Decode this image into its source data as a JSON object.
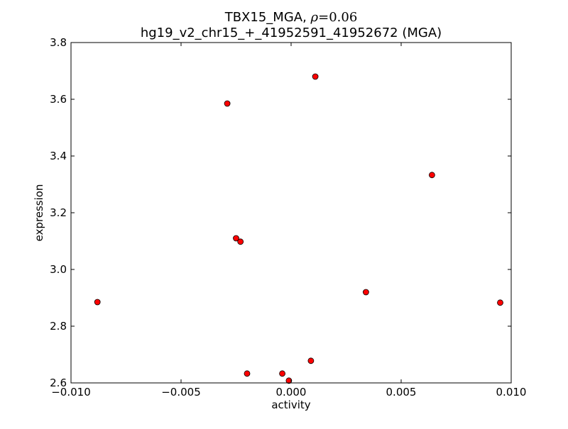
{
  "chart_data": {
    "type": "scatter",
    "title_line1_prefix": "TBX15_MGA,",
    "title_rho_symbol": "ρ",
    "title_rho_value": "=0.06",
    "title_line2": "hg19_v2_chr15_+_41952591_41952672 (MGA)",
    "xlabel": "activity",
    "ylabel": "expression",
    "xlim": [
      -0.01,
      0.01
    ],
    "ylim": [
      2.6,
      3.8
    ],
    "xticks": [
      -0.01,
      -0.005,
      0.0,
      0.005,
      0.01
    ],
    "xtick_labels": [
      "−0.010",
      "−0.005",
      "0.000",
      "0.005",
      "0.010"
    ],
    "yticks": [
      2.6,
      2.8,
      3.0,
      3.2,
      3.4,
      3.6,
      3.8
    ],
    "ytick_labels": [
      "2.6",
      "2.8",
      "3.0",
      "3.2",
      "3.4",
      "3.6",
      "3.8"
    ],
    "grid": false,
    "marker_color": "#ff0000",
    "marker_edge": "#000000",
    "points": [
      {
        "x": -0.0088,
        "y": 2.885
      },
      {
        "x": -0.0029,
        "y": 3.585
      },
      {
        "x": -0.0025,
        "y": 3.11
      },
      {
        "x": -0.0023,
        "y": 3.098
      },
      {
        "x": -0.002,
        "y": 2.633
      },
      {
        "x": -0.0004,
        "y": 2.633
      },
      {
        "x": -0.0001,
        "y": 2.608
      },
      {
        "x": 0.0009,
        "y": 2.678
      },
      {
        "x": 0.0011,
        "y": 3.68
      },
      {
        "x": 0.0034,
        "y": 2.92
      },
      {
        "x": 0.0064,
        "y": 3.333
      },
      {
        "x": 0.0095,
        "y": 2.883
      }
    ]
  }
}
